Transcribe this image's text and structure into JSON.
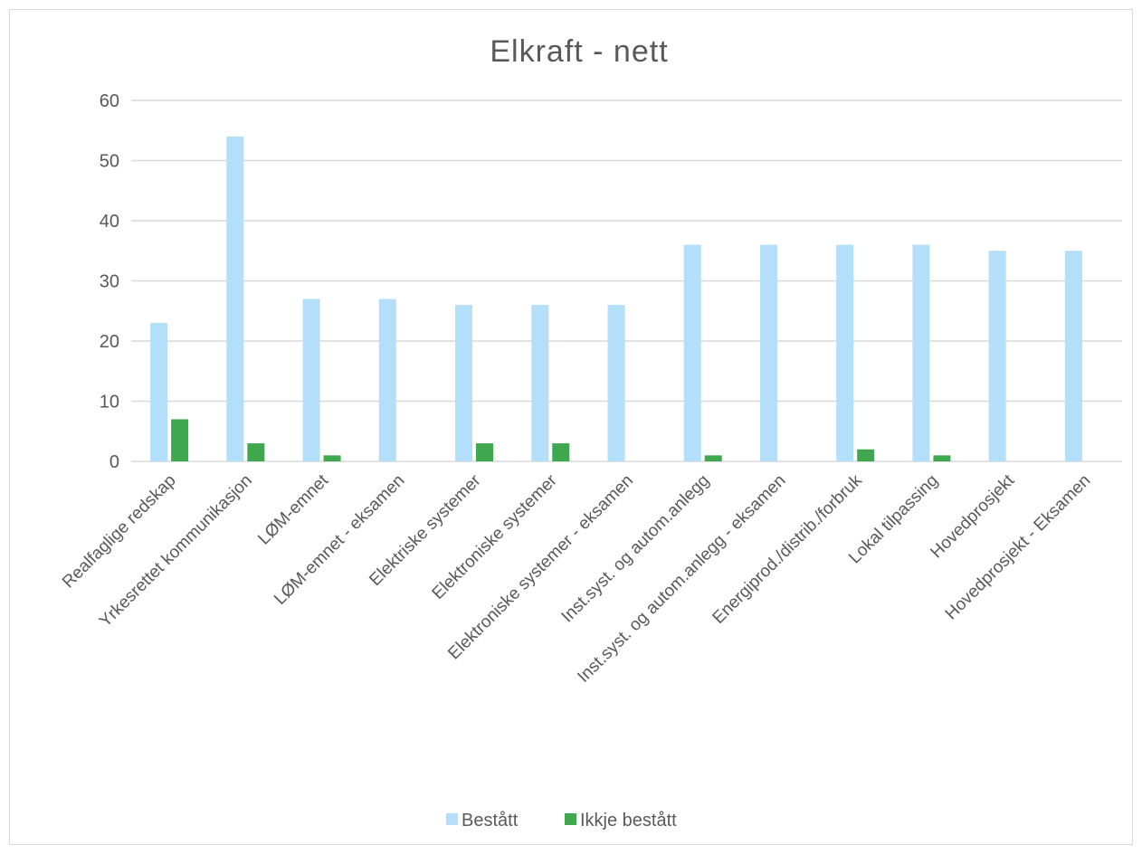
{
  "chart_data": {
    "type": "bar",
    "title": "Elkraft - nett",
    "xlabel": "",
    "ylabel": "",
    "ylim": [
      0,
      60
    ],
    "yticks": [
      0,
      10,
      20,
      30,
      40,
      50,
      60
    ],
    "grid": true,
    "legend_position": "bottom",
    "categories": [
      "Realfaglige redskap",
      "Yrkesrettet kommunikasjon",
      "LØM-emnet",
      "LØM-emnet - eksamen",
      "Elektriske systemer",
      "Elektroniske systemer",
      "Elektroniske systemer - eksamen",
      "Inst.syst. og autom.anlegg",
      "Inst.syst. og autom.anlegg - eksamen",
      "Energiprod./distrib./forbruk",
      "Lokal tilpassing",
      "Hovedprosjekt",
      "Hovedprosjekt - Eksamen"
    ],
    "series": [
      {
        "name": "Bestått",
        "color": "#b3dffa",
        "values": [
          23,
          54,
          27,
          27,
          26,
          26,
          26,
          36,
          36,
          36,
          36,
          35,
          35
        ]
      },
      {
        "name": "Ikkje bestått",
        "color": "#3fa84f",
        "values": [
          7,
          3,
          1,
          0,
          3,
          3,
          0,
          1,
          0,
          2,
          1,
          0,
          0
        ]
      }
    ]
  }
}
